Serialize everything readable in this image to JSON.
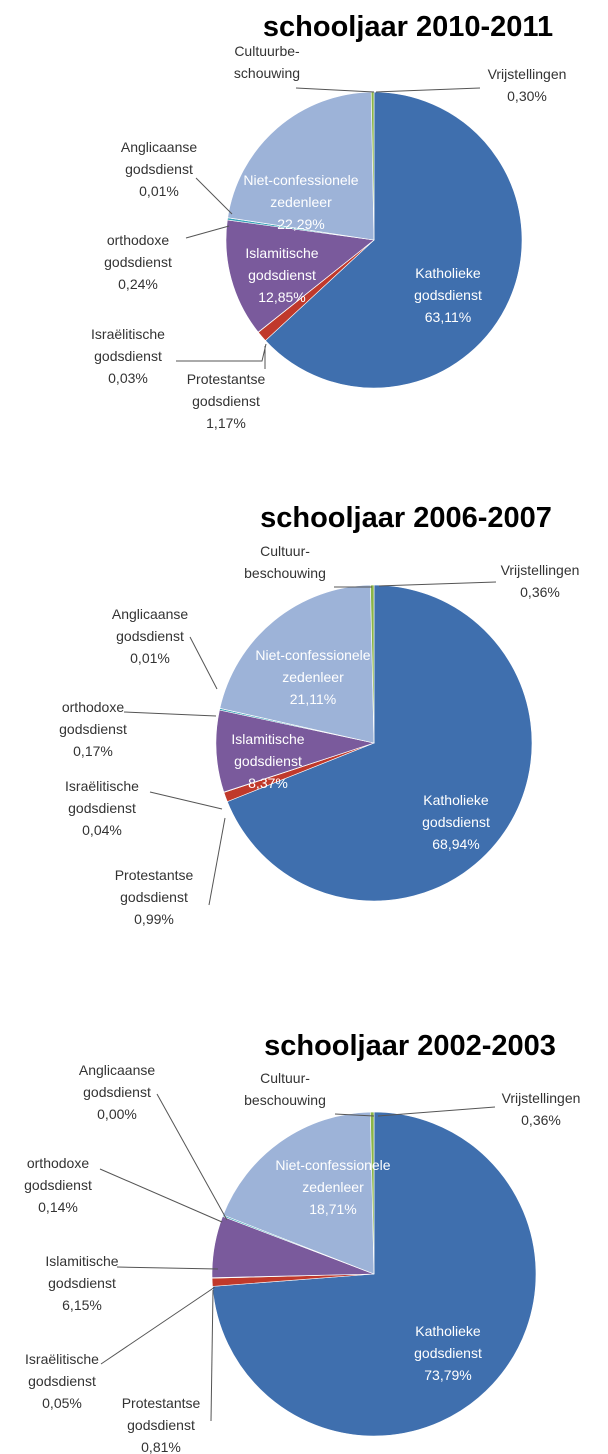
{
  "colors": {
    "katholieke": "#3f6fae",
    "protestantse": "#c0392b",
    "israelitische": "#6b8f3a",
    "islamitische": "#7a5a9c",
    "orthodoxe": "#37a3b8",
    "anglicaanse": "#e67e22",
    "niet_confessionele": "#9db3d8",
    "cultuurbeschouwing": "#4a6fa5",
    "vrijstellingen": "#8ab447"
  },
  "chart_data": [
    {
      "type": "pie",
      "title": "schooljaar 2010-2011",
      "slices": [
        {
          "key": "katholieke",
          "label": [
            "Katholieke",
            "godsdienst"
          ],
          "value": 63.11,
          "value_label": "63,11%",
          "inside": true
        },
        {
          "key": "protestantse",
          "label": [
            "Protestantse",
            "godsdienst"
          ],
          "value": 1.17,
          "value_label": "1,17%",
          "inside": false
        },
        {
          "key": "israelitische",
          "label": [
            "Israëlitische",
            "godsdienst"
          ],
          "value": 0.03,
          "value_label": "0,03%",
          "inside": false
        },
        {
          "key": "islamitische",
          "label": [
            "Islamitische",
            "godsdienst"
          ],
          "value": 12.85,
          "value_label": "12,85%",
          "inside": true
        },
        {
          "key": "orthodoxe",
          "label": [
            "orthodoxe",
            "godsdienst"
          ],
          "value": 0.24,
          "value_label": "0,24%",
          "inside": false
        },
        {
          "key": "anglicaanse",
          "label": [
            "Anglicaanse",
            "godsdienst"
          ],
          "value": 0.01,
          "value_label": "0,01%",
          "inside": false
        },
        {
          "key": "niet_confessionele",
          "label": [
            "Niet-confessionele",
            "zedenleer"
          ],
          "value": 22.29,
          "value_label": "22,29%",
          "inside": true
        },
        {
          "key": "cultuurbeschouwing",
          "label": [
            "Cultuurbe-",
            "schouwing"
          ],
          "value": 0.0,
          "value_label": "",
          "inside": false
        },
        {
          "key": "vrijstellingen",
          "label": [
            "Vrijstellingen"
          ],
          "value": 0.3,
          "value_label": "0,30%",
          "inside": false
        }
      ]
    },
    {
      "type": "pie",
      "title": "schooljaar 2006-2007",
      "slices": [
        {
          "key": "katholieke",
          "label": [
            "Katholieke",
            "godsdienst"
          ],
          "value": 68.94,
          "value_label": "68,94%",
          "inside": true
        },
        {
          "key": "protestantse",
          "label": [
            "Protestantse",
            "godsdienst"
          ],
          "value": 0.99,
          "value_label": "0,99%",
          "inside": false
        },
        {
          "key": "israelitische",
          "label": [
            "Israëlitische",
            "godsdienst"
          ],
          "value": 0.04,
          "value_label": "0,04%",
          "inside": false
        },
        {
          "key": "islamitische",
          "label": [
            "Islamitische",
            "godsdienst"
          ],
          "value": 8.37,
          "value_label": "8,37%",
          "inside": true
        },
        {
          "key": "orthodoxe",
          "label": [
            "orthodoxe",
            "godsdienst"
          ],
          "value": 0.17,
          "value_label": "0,17%",
          "inside": false
        },
        {
          "key": "anglicaanse",
          "label": [
            "Anglicaanse",
            "godsdienst"
          ],
          "value": 0.01,
          "value_label": "0,01%",
          "inside": false
        },
        {
          "key": "niet_confessionele",
          "label": [
            "Niet-confessionele",
            "zedenleer"
          ],
          "value": 21.11,
          "value_label": "21,11%",
          "inside": true
        },
        {
          "key": "cultuurbeschouwing",
          "label": [
            "Cultuur-",
            "beschouwing"
          ],
          "value": 0.0,
          "value_label": "",
          "inside": false
        },
        {
          "key": "vrijstellingen",
          "label": [
            "Vrijstellingen"
          ],
          "value": 0.36,
          "value_label": "0,36%",
          "inside": false
        }
      ]
    },
    {
      "type": "pie",
      "title": "schooljaar 2002-2003",
      "slices": [
        {
          "key": "katholieke",
          "label": [
            "Katholieke",
            "godsdienst"
          ],
          "value": 73.79,
          "value_label": "73,79%",
          "inside": true
        },
        {
          "key": "protestantse",
          "label": [
            "Protestantse",
            "godsdienst"
          ],
          "value": 0.81,
          "value_label": "0,81%",
          "inside": false
        },
        {
          "key": "israelitische",
          "label": [
            "Israëlitische",
            "godsdienst"
          ],
          "value": 0.05,
          "value_label": "0,05%",
          "inside": false
        },
        {
          "key": "islamitische",
          "label": [
            "Islamitische",
            "godsdienst"
          ],
          "value": 6.15,
          "value_label": "6,15%",
          "inside": false
        },
        {
          "key": "orthodoxe",
          "label": [
            "orthodoxe",
            "godsdienst"
          ],
          "value": 0.14,
          "value_label": "0,14%",
          "inside": false
        },
        {
          "key": "anglicaanse",
          "label": [
            "Anglicaanse",
            "godsdienst"
          ],
          "value": 0.0,
          "value_label": "0,00%",
          "inside": false
        },
        {
          "key": "niet_confessionele",
          "label": [
            "Niet-confessionele",
            "zedenleer"
          ],
          "value": 18.71,
          "value_label": "18,71%",
          "inside": true
        },
        {
          "key": "cultuurbeschouwing",
          "label": [
            "Cultuur-",
            "beschouwing"
          ],
          "value": 0.0,
          "value_label": "",
          "inside": false
        },
        {
          "key": "vrijstellingen",
          "label": [
            "Vrijstellingen"
          ],
          "value": 0.36,
          "value_label": "0,36%",
          "inside": false
        }
      ]
    }
  ]
}
